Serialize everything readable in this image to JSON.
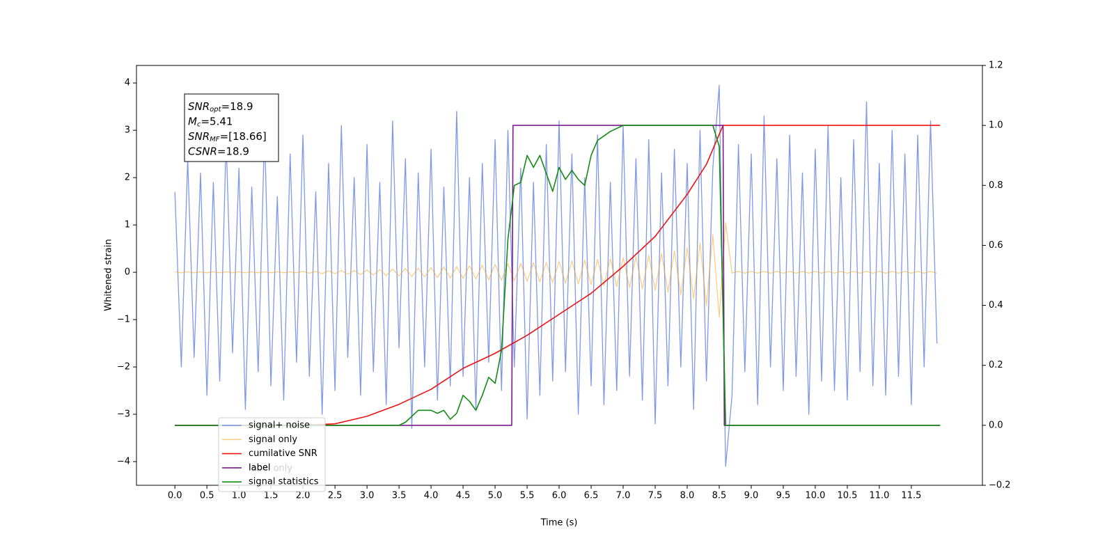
{
  "chart_data": {
    "type": "line",
    "xlabel": "Time (s)",
    "ylabel": "Whitened strain",
    "xlim": [
      -0.6,
      12.61
    ],
    "ylim": [
      -4.5,
      4.37
    ],
    "y2lim": [
      -0.2,
      1.2
    ],
    "xticks": [
      {
        "value": 0,
        "label": "0.0"
      },
      {
        "value": 0.5,
        "label": "0.5"
      },
      {
        "value": 1,
        "label": "1.0"
      },
      {
        "value": 1.5,
        "label": "1.5"
      },
      {
        "value": 2,
        "label": "2.0"
      },
      {
        "value": 2.5,
        "label": "2.5"
      },
      {
        "value": 3,
        "label": "3.0"
      },
      {
        "value": 3.5,
        "label": "3.5"
      },
      {
        "value": 4,
        "label": "4.0"
      },
      {
        "value": 4.5,
        "label": "4.5"
      },
      {
        "value": 5,
        "label": "5.0"
      },
      {
        "value": 5.5,
        "label": "5.5"
      },
      {
        "value": 6,
        "label": "6.0"
      },
      {
        "value": 6.5,
        "label": "6.5"
      },
      {
        "value": 7,
        "label": "7.0"
      },
      {
        "value": 7.5,
        "label": "7.5"
      },
      {
        "value": 8,
        "label": "8.0"
      },
      {
        "value": 8.5,
        "label": "8.5"
      },
      {
        "value": 9,
        "label": "9.0"
      },
      {
        "value": 9.5,
        "label": "9.5"
      },
      {
        "value": 10,
        "label": "10.0"
      },
      {
        "value": 10.5,
        "label": "10.5"
      },
      {
        "value": 11,
        "label": "11.0"
      },
      {
        "value": 11.5,
        "label": "11.5"
      }
    ],
    "yticks": [
      {
        "value": -4,
        "label": "−4"
      },
      {
        "value": -3,
        "label": "−3"
      },
      {
        "value": -2,
        "label": "−2"
      },
      {
        "value": -1,
        "label": "−1"
      },
      0,
      1,
      2,
      3,
      4
    ],
    "y2ticks": [
      {
        "value": -0.2,
        "label": "−0.2"
      },
      {
        "value": 0,
        "label": "0.0"
      },
      0.2,
      0.4,
      0.6,
      0.8,
      {
        "value": 1,
        "label": "1.0"
      },
      1.2
    ],
    "annotations": [
      {
        "symbol": "SNR",
        "sub": "opt",
        "text": "=18.9"
      },
      {
        "symbol": "M",
        "sub": "c",
        "text": "=5.41"
      },
      {
        "symbol": "SNR",
        "sub": "MF",
        "text": "=[18.66]"
      },
      {
        "symbol": "CSNR",
        "sub": "",
        "text": "=18.9"
      }
    ],
    "legend_ghost": "label only",
    "legend_loc": "lower left",
    "x": [
      0,
      0.1,
      0.2,
      0.3,
      0.4,
      0.5,
      0.6,
      0.7,
      0.8,
      0.9,
      1,
      1.1,
      1.2,
      1.3,
      1.4,
      1.5,
      1.6,
      1.7,
      1.8,
      1.9,
      2,
      2.1,
      2.2,
      2.3,
      2.4,
      2.5,
      2.6,
      2.7,
      2.8,
      2.9,
      3,
      3.1,
      3.2,
      3.3,
      3.4,
      3.5,
      3.6,
      3.7,
      3.8,
      3.9,
      4,
      4.1,
      4.2,
      4.3,
      4.4,
      4.5,
      4.6,
      4.7,
      4.8,
      4.9,
      5,
      5.1,
      5.2,
      5.3,
      5.4,
      5.5,
      5.6,
      5.7,
      5.8,
      5.9,
      6,
      6.1,
      6.2,
      6.3,
      6.4,
      6.5,
      6.6,
      6.7,
      6.8,
      6.9,
      7,
      7.1,
      7.2,
      7.3,
      7.4,
      7.5,
      7.6,
      7.7,
      7.8,
      7.9,
      8,
      8.1,
      8.2,
      8.3,
      8.4,
      8.5,
      8.6,
      8.7,
      8.8,
      8.9,
      9,
      9.1,
      9.2,
      9.3,
      9.4,
      9.5,
      9.6,
      9.7,
      9.8,
      9.9,
      10,
      10.1,
      10.2,
      10.3,
      10.4,
      10.5,
      10.6,
      10.7,
      10.8,
      10.9,
      11,
      11.1,
      11.2,
      11.3,
      11.4,
      11.5,
      11.6,
      11.7,
      11.8,
      11.9
    ],
    "series": [
      {
        "name": "signal+ noise",
        "color": "#7893e8",
        "values": [
          1.7,
          -2.0,
          2.4,
          -1.8,
          2.1,
          -2.6,
          1.9,
          -2.3,
          2.8,
          -1.7,
          2.2,
          -2.9,
          1.8,
          -2.1,
          3.0,
          -2.4,
          1.6,
          -2.7,
          2.5,
          -1.9,
          2.9,
          -2.2,
          1.7,
          -3.0,
          2.3,
          -2.5,
          3.1,
          -1.8,
          2.0,
          -2.6,
          2.7,
          -2.1,
          1.9,
          -2.8,
          3.2,
          -1.6,
          2.4,
          -3.3,
          2.1,
          -2.0,
          2.6,
          -2.7,
          1.8,
          -2.4,
          3.4,
          -2.2,
          2.0,
          -2.9,
          2.3,
          -1.9,
          2.8,
          -2.5,
          3.0,
          -2.0,
          2.2,
          -3.1,
          1.9,
          -2.6,
          2.7,
          -2.3,
          3.2,
          -2.1,
          2.5,
          -3.0,
          2.0,
          -2.4,
          2.9,
          -2.8,
          1.9,
          -2.5,
          3.1,
          -2.2,
          2.4,
          -2.7,
          2.8,
          -3.2,
          2.1,
          -2.4,
          2.6,
          -2.0,
          2.3,
          -2.9,
          3.0,
          -2.3,
          2.2,
          3.95,
          -4.1,
          -2.6,
          2.7,
          -2.1,
          2.5,
          -2.8,
          3.3,
          -2.0,
          2.4,
          -2.5,
          2.9,
          -2.2,
          2.1,
          -3.0,
          2.6,
          -2.3,
          3.1,
          -2.5,
          2.0,
          -2.7,
          2.8,
          -2.1,
          3.6,
          -2.4,
          2.3,
          -2.6,
          3.0,
          -2.2,
          2.5,
          -2.8,
          2.9,
          -2.0,
          3.2,
          -1.5
        ]
      },
      {
        "name": "signal only",
        "color": "#f5a623",
        "values": [
          0.01,
          -0.01,
          0.01,
          -0.01,
          0.01,
          -0.01,
          0.01,
          -0.01,
          0.01,
          -0.01,
          0.01,
          -0.01,
          0.01,
          -0.01,
          0.01,
          -0.01,
          0.01,
          -0.01,
          0.01,
          -0.01,
          0.02,
          -0.02,
          0.02,
          -0.03,
          0.03,
          -0.03,
          0.04,
          -0.04,
          0.04,
          -0.05,
          0.05,
          -0.06,
          0.06,
          -0.07,
          0.07,
          -0.08,
          0.08,
          -0.09,
          0.09,
          -0.1,
          0.1,
          -0.11,
          0.11,
          -0.12,
          0.12,
          -0.13,
          0.14,
          -0.14,
          0.15,
          -0.16,
          0.17,
          -0.17,
          0.18,
          -0.18,
          0.19,
          -0.19,
          0.2,
          -0.2,
          0.21,
          -0.22,
          0.23,
          -0.23,
          0.24,
          -0.25,
          0.26,
          -0.26,
          0.27,
          -0.28,
          0.29,
          -0.3,
          0.31,
          -0.32,
          0.33,
          -0.35,
          0.36,
          -0.38,
          0.4,
          -0.42,
          0.45,
          -0.48,
          0.52,
          -0.56,
          0.62,
          -0.7,
          0.8,
          -0.95,
          1.05,
          -0.02,
          0.02,
          -0.02,
          0.02,
          -0.02,
          0.02,
          -0.02,
          0.02,
          -0.02,
          0.02,
          -0.02,
          0.02,
          -0.02,
          0.02,
          -0.02,
          0.02,
          -0.02,
          0.02,
          -0.02,
          0.02,
          -0.02,
          0.02,
          -0.02,
          0.02,
          -0.02,
          0.02,
          -0.02,
          0.02,
          -0.02,
          0.02,
          -0.02,
          0.02,
          -0.02
        ]
      },
      {
        "name": "cumilative SNR",
        "color": "#ee1111",
        "axis": "y2",
        "x": [
          0,
          2.0,
          2.5,
          3.0,
          3.5,
          4.0,
          4.5,
          5.0,
          5.5,
          6.0,
          6.5,
          7.0,
          7.5,
          8.0,
          8.3,
          8.5,
          8.56,
          11.95
        ],
        "values": [
          0,
          0,
          0.005,
          0.03,
          0.07,
          0.12,
          0.19,
          0.24,
          0.3,
          0.37,
          0.44,
          0.53,
          0.63,
          0.77,
          0.87,
          0.97,
          1.0,
          1.0
        ]
      },
      {
        "name": "label",
        "color": "#7a1a8c",
        "axis": "y2",
        "x": [
          0,
          5.26,
          5.28,
          8.56,
          8.58,
          11.95
        ],
        "values": [
          0,
          0,
          1,
          1,
          0,
          0
        ]
      },
      {
        "name": "signal statistics",
        "color": "#138a13",
        "axis": "y2",
        "x": [
          0,
          3.5,
          3.6,
          3.8,
          4.0,
          4.1,
          4.2,
          4.3,
          4.4,
          4.5,
          4.6,
          4.7,
          4.8,
          4.9,
          5.0,
          5.1,
          5.2,
          5.3,
          5.4,
          5.5,
          5.6,
          5.7,
          5.8,
          5.9,
          6.0,
          6.1,
          6.2,
          6.3,
          6.4,
          6.5,
          6.6,
          6.8,
          7.0,
          8.4,
          8.5,
          8.6,
          11.95
        ],
        "values": [
          0,
          0,
          0.01,
          0.05,
          0.05,
          0.04,
          0.05,
          0.02,
          0.04,
          0.1,
          0.08,
          0.05,
          0.1,
          0.16,
          0.14,
          0.25,
          0.62,
          0.8,
          0.81,
          0.9,
          0.86,
          0.9,
          0.84,
          0.78,
          0.86,
          0.82,
          0.85,
          0.82,
          0.8,
          0.9,
          0.95,
          0.98,
          1.0,
          1.0,
          0.93,
          0,
          0
        ]
      }
    ]
  }
}
